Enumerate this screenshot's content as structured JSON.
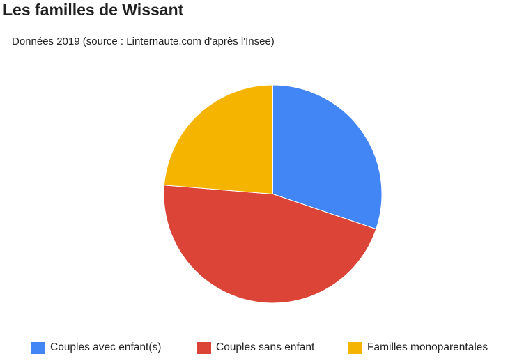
{
  "page": {
    "title": "Les familles de Wissant"
  },
  "chart_data": {
    "type": "pie",
    "title": "",
    "subtitle": "Données 2019 (source : Linternaute.com d'après l'Insee)",
    "categories": [
      "Couples avec enfant(s)",
      "Couples sans enfant",
      "Familles monoparentales"
    ],
    "values": [
      30.2,
      46.1,
      23.7
    ],
    "colors": [
      "#4285f4",
      "#db4437",
      "#f4b400"
    ],
    "start_angle_deg": 0,
    "direction": "clockwise",
    "legend_position": "bottom",
    "slice_labels_shown": false
  }
}
